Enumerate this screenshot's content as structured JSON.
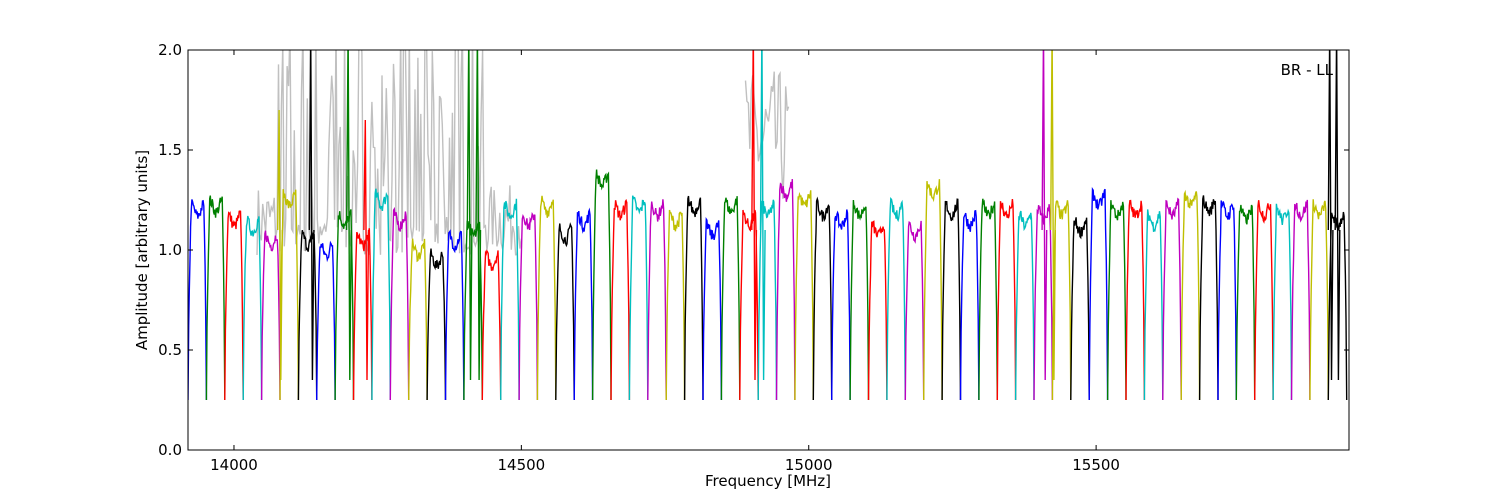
{
  "chart_data": {
    "type": "line",
    "xlabel": "Frequency [MHz]",
    "ylabel": "Amplitude [arbitrary units]",
    "annotation": "BR - LL",
    "xlim": [
      13920,
      15940
    ],
    "ylim": [
      0.0,
      2.0
    ],
    "xticks": [
      14000,
      14500,
      15000,
      15500
    ],
    "xtick_labels": [
      "14000",
      "14500",
      "15000",
      "15500"
    ],
    "yticks": [
      0.0,
      0.5,
      1.0,
      1.5,
      2.0
    ],
    "ytick_labels": [
      "0.0",
      "0.5",
      "1.0",
      "1.5",
      "2.0"
    ],
    "grid": false,
    "legend": "none",
    "channel_width_mhz": 32,
    "channel_start_mhz": 13920,
    "channel_count": 63,
    "color_cycle": [
      "#0000ff",
      "#008000",
      "#ff0000",
      "#00bfbf",
      "#bf00bf",
      "#bfbf00",
      "#000000"
    ],
    "background_trace_color": "#c0c0c0",
    "channel_levels": [
      1.2,
      1.22,
      1.15,
      1.12,
      1.05,
      1.25,
      1.05,
      1.0,
      1.15,
      1.05,
      1.25,
      1.15,
      1.0,
      0.95,
      1.05,
      1.1,
      0.95,
      1.2,
      1.15,
      1.22,
      1.08,
      1.15,
      1.35,
      1.2,
      1.22,
      1.2,
      1.15,
      1.22,
      1.1,
      1.22,
      1.15,
      1.2,
      1.3,
      1.25,
      1.2,
      1.15,
      1.2,
      1.1,
      1.2,
      1.1,
      1.3,
      1.2,
      1.15,
      1.2,
      1.2,
      1.15,
      1.18,
      1.2,
      1.12,
      1.25,
      1.2,
      1.2,
      1.15,
      1.2,
      1.25,
      1.22,
      1.2,
      1.18,
      1.2,
      1.18,
      1.2,
      1.2,
      1.15
    ],
    "spikes": [
      {
        "x": 14080,
        "y": 1.6
      },
      {
        "x": 14135,
        "y": 2.0
      },
      {
        "x": 14200,
        "y": 2.0
      },
      {
        "x": 14230,
        "y": 1.55
      },
      {
        "x": 14410,
        "y": 2.0
      },
      {
        "x": 14425,
        "y": 2.0
      },
      {
        "x": 14905,
        "y": 2.0
      },
      {
        "x": 14920,
        "y": 2.0
      },
      {
        "x": 15410,
        "y": 2.0
      },
      {
        "x": 15425,
        "y": 2.0
      },
      {
        "x": 15908,
        "y": 2.0
      },
      {
        "x": 15920,
        "y": 2.0
      }
    ],
    "dip_minimum": 0.25
  }
}
